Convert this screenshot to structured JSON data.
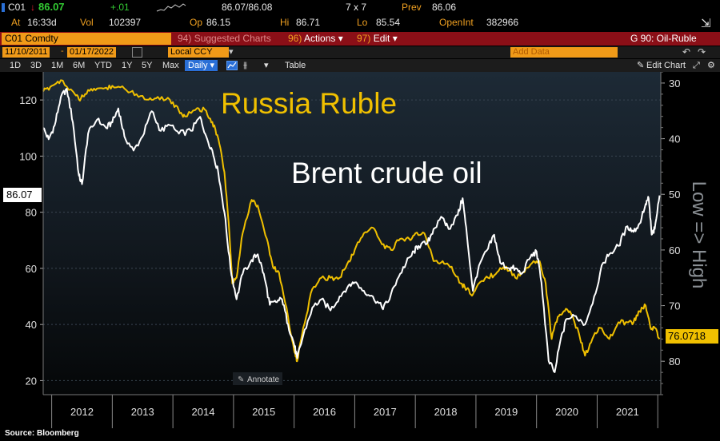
{
  "quote": {
    "ticker": "C01",
    "last": "86.07",
    "change": "+.01",
    "at_label": "At",
    "time": "16:33d",
    "vol_label": "Vol",
    "vol": "102397",
    "op_label": "Op",
    "op": "86.15",
    "bidask": "86.07/86.08",
    "size": "7 x 7",
    "hi_label": "Hi",
    "hi": "86.71",
    "prev_label": "Prev",
    "prev": "86.06",
    "lo_label": "Lo",
    "lo": "85.54",
    "openint_label": "OpenInt",
    "openint": "382966"
  },
  "security_bar": {
    "security": "C01 Comdty",
    "suggested_num": "94",
    "suggested": "Suggested Charts",
    "actions_num": "96)",
    "actions": "Actions",
    "edit_num": "97)",
    "edit": "Edit",
    "page_title": "G 90: Oil-Ruble"
  },
  "date_bar": {
    "start": "11/10/2011",
    "end": "01/17/2022",
    "currency": "Local CCY",
    "add_data_placeholder": "Add Data"
  },
  "range_bar": {
    "ranges": [
      "1D",
      "3D",
      "1M",
      "6M",
      "YTD",
      "1Y",
      "5Y",
      "Max"
    ],
    "frequency": "Daily",
    "table": "Table",
    "edit_chart": "Edit Chart"
  },
  "annotate": "Annotate",
  "source": "Source: Bloomberg",
  "chart_data": {
    "type": "line",
    "annotations": [
      "Russia Ruble",
      "Brent crude oil"
    ],
    "x_ticks": [
      "2012",
      "2013",
      "2014",
      "2015",
      "2016",
      "2017",
      "2018",
      "2019",
      "2020",
      "2021"
    ],
    "y_left_ticks": [
      "20",
      "40",
      "60",
      "80",
      "100",
      "120"
    ],
    "y_left_range": [
      15,
      130
    ],
    "y_right_ticks": [
      "30",
      "40",
      "50",
      "60",
      "70",
      "80"
    ],
    "y_right_range": [
      28,
      86
    ],
    "y_right_label": "Low => High",
    "y_right_inverted": true,
    "last_left": "86.07",
    "last_right": "76.0718",
    "series": [
      {
        "name": "Brent crude oil",
        "axis": "left",
        "color": "#ffffff",
        "points": [
          [
            2011.86,
            110
          ],
          [
            2011.95,
            106
          ],
          [
            2012.05,
            111
          ],
          [
            2012.15,
            121
          ],
          [
            2012.25,
            124
          ],
          [
            2012.35,
            112
          ],
          [
            2012.45,
            93
          ],
          [
            2012.5,
            90
          ],
          [
            2012.6,
            108
          ],
          [
            2012.75,
            113
          ],
          [
            2012.9,
            110
          ],
          [
            2013.0,
            112
          ],
          [
            2013.1,
            117
          ],
          [
            2013.2,
            107
          ],
          [
            2013.35,
            102
          ],
          [
            2013.5,
            107
          ],
          [
            2013.65,
            116
          ],
          [
            2013.8,
            109
          ],
          [
            2013.95,
            111
          ],
          [
            2014.1,
            108
          ],
          [
            2014.3,
            109
          ],
          [
            2014.45,
            114
          ],
          [
            2014.55,
            107
          ],
          [
            2014.65,
            102
          ],
          [
            2014.75,
            94
          ],
          [
            2014.85,
            80
          ],
          [
            2014.95,
            60
          ],
          [
            2015.05,
            49
          ],
          [
            2015.15,
            58
          ],
          [
            2015.3,
            63
          ],
          [
            2015.4,
            65
          ],
          [
            2015.5,
            58
          ],
          [
            2015.6,
            47
          ],
          [
            2015.7,
            48
          ],
          [
            2015.8,
            49
          ],
          [
            2015.9,
            40
          ],
          [
            2016.0,
            33
          ],
          [
            2016.05,
            28
          ],
          [
            2016.15,
            36
          ],
          [
            2016.3,
            46
          ],
          [
            2016.45,
            49
          ],
          [
            2016.6,
            45
          ],
          [
            2016.75,
            50
          ],
          [
            2016.9,
            54
          ],
          [
            2017.0,
            55
          ],
          [
            2017.15,
            52
          ],
          [
            2017.3,
            50
          ],
          [
            2017.45,
            46
          ],
          [
            2017.55,
            48
          ],
          [
            2017.7,
            56
          ],
          [
            2017.85,
            62
          ],
          [
            2017.98,
            66
          ],
          [
            2018.05,
            68
          ],
          [
            2018.2,
            69
          ],
          [
            2018.3,
            74
          ],
          [
            2018.45,
            78
          ],
          [
            2018.55,
            74
          ],
          [
            2018.7,
            79
          ],
          [
            2018.78,
            85
          ],
          [
            2018.85,
            72
          ],
          [
            2018.95,
            52
          ],
          [
            2019.05,
            61
          ],
          [
            2019.2,
            67
          ],
          [
            2019.3,
            72
          ],
          [
            2019.4,
            62
          ],
          [
            2019.55,
            60
          ],
          [
            2019.65,
            60
          ],
          [
            2019.75,
            58
          ],
          [
            2019.9,
            64
          ],
          [
            2020.0,
            66
          ],
          [
            2020.08,
            55
          ],
          [
            2020.2,
            27
          ],
          [
            2020.3,
            23
          ],
          [
            2020.4,
            35
          ],
          [
            2020.5,
            42
          ],
          [
            2020.65,
            43
          ],
          [
            2020.8,
            40
          ],
          [
            2020.95,
            50
          ],
          [
            2021.1,
            62
          ],
          [
            2021.2,
            65
          ],
          [
            2021.35,
            68
          ],
          [
            2021.5,
            75
          ],
          [
            2021.6,
            73
          ],
          [
            2021.7,
            76
          ],
          [
            2021.8,
            83
          ],
          [
            2021.85,
            85
          ],
          [
            2021.9,
            72
          ],
          [
            2021.95,
            74
          ],
          [
            2022.03,
            86
          ]
        ]
      },
      {
        "name": "Russia Ruble",
        "axis": "right",
        "color": "#f0c000",
        "points": [
          [
            2011.86,
            31.5
          ],
          [
            2012.0,
            30.5
          ],
          [
            2012.15,
            29.5
          ],
          [
            2012.35,
            31.5
          ],
          [
            2012.45,
            33
          ],
          [
            2012.55,
            32
          ],
          [
            2012.7,
            31
          ],
          [
            2012.85,
            31
          ],
          [
            2013.0,
            30.5
          ],
          [
            2013.2,
            31
          ],
          [
            2013.4,
            32
          ],
          [
            2013.6,
            33
          ],
          [
            2013.75,
            32.5
          ],
          [
            2013.95,
            33
          ],
          [
            2014.1,
            35
          ],
          [
            2014.2,
            36
          ],
          [
            2014.4,
            34.5
          ],
          [
            2014.55,
            35
          ],
          [
            2014.65,
            37
          ],
          [
            2014.75,
            40
          ],
          [
            2014.85,
            46
          ],
          [
            2014.92,
            55
          ],
          [
            2014.98,
            66
          ],
          [
            2015.05,
            65
          ],
          [
            2015.15,
            57
          ],
          [
            2015.3,
            51
          ],
          [
            2015.4,
            52
          ],
          [
            2015.55,
            58
          ],
          [
            2015.65,
            63
          ],
          [
            2015.75,
            64
          ],
          [
            2015.9,
            72
          ],
          [
            2016.0,
            78
          ],
          [
            2016.05,
            80
          ],
          [
            2016.15,
            74
          ],
          [
            2016.3,
            67
          ],
          [
            2016.45,
            65
          ],
          [
            2016.6,
            65
          ],
          [
            2016.75,
            65
          ],
          [
            2016.9,
            62
          ],
          [
            2017.0,
            60
          ],
          [
            2017.15,
            57
          ],
          [
            2017.3,
            56
          ],
          [
            2017.45,
            59
          ],
          [
            2017.6,
            60
          ],
          [
            2017.75,
            58
          ],
          [
            2017.9,
            58
          ],
          [
            2018.0,
            57
          ],
          [
            2018.15,
            57
          ],
          [
            2018.3,
            62
          ],
          [
            2018.45,
            62
          ],
          [
            2018.6,
            63
          ],
          [
            2018.75,
            66
          ],
          [
            2018.85,
            67
          ],
          [
            2018.95,
            68
          ],
          [
            2019.05,
            66
          ],
          [
            2019.2,
            65
          ],
          [
            2019.35,
            64
          ],
          [
            2019.5,
            63
          ],
          [
            2019.65,
            65
          ],
          [
            2019.8,
            64
          ],
          [
            2019.95,
            62
          ],
          [
            2020.05,
            62
          ],
          [
            2020.15,
            66
          ],
          [
            2020.25,
            76
          ],
          [
            2020.35,
            72
          ],
          [
            2020.45,
            71
          ],
          [
            2020.55,
            71
          ],
          [
            2020.7,
            75
          ],
          [
            2020.8,
            79
          ],
          [
            2020.92,
            76
          ],
          [
            2021.05,
            74
          ],
          [
            2021.2,
            76
          ],
          [
            2021.35,
            73
          ],
          [
            2021.5,
            73
          ],
          [
            2021.6,
            73
          ],
          [
            2021.7,
            71
          ],
          [
            2021.8,
            70
          ],
          [
            2021.88,
            74
          ],
          [
            2021.95,
            74
          ],
          [
            2022.03,
            76
          ]
        ]
      }
    ]
  }
}
